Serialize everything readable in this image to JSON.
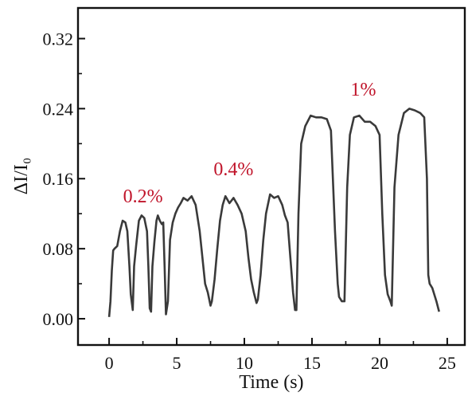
{
  "colors": {
    "line": "#3a3a3a",
    "annotation": "#c0142a",
    "axis": "#111111"
  },
  "chart_data": {
    "type": "line",
    "title": "",
    "xlabel": "Time (s)",
    "ylabel": "ΔI/I₀",
    "xlim": [
      -2.3,
      26.3
    ],
    "ylim": [
      -0.03,
      0.355
    ],
    "x_ticks": [
      0,
      5,
      10,
      15,
      20,
      25
    ],
    "y_ticks": [
      0.0,
      0.08,
      0.16,
      0.24,
      0.32
    ],
    "x_tick_labels": [
      "0",
      "5",
      "10",
      "15",
      "20",
      "25"
    ],
    "y_tick_labels": [
      "0.00",
      "0.08",
      "0.16",
      "0.24",
      "0.32"
    ],
    "grid": false,
    "annotations": [
      {
        "text": "0.2%",
        "x": 2.5,
        "y": 0.133
      },
      {
        "text": "0.4%",
        "x": 9.2,
        "y": 0.164
      },
      {
        "text": "1%",
        "x": 18.8,
        "y": 0.255
      }
    ],
    "series": [
      {
        "x": [
          0.0,
          0.1,
          0.2,
          0.3,
          0.4,
          0.6,
          0.8,
          1.0,
          1.2,
          1.35,
          1.5,
          1.6,
          1.75,
          1.85,
          2.0,
          2.2,
          2.4,
          2.6,
          2.8,
          2.9,
          3.0,
          3.1,
          3.2,
          3.35,
          3.5,
          3.6,
          3.75,
          3.9,
          4.0,
          4.1,
          4.2,
          4.35,
          4.5,
          4.7,
          4.9,
          5.1,
          5.3,
          5.5,
          5.8,
          6.1,
          6.4,
          6.7,
          6.9,
          7.1,
          7.3,
          7.5,
          7.6,
          7.8,
          8.0,
          8.2,
          8.4,
          8.6,
          8.9,
          9.2,
          9.5,
          9.8,
          10.1,
          10.3,
          10.5,
          10.7,
          10.9,
          11.0,
          11.2,
          11.4,
          11.6,
          11.9,
          12.2,
          12.5,
          12.8,
          13.0,
          13.2,
          13.4,
          13.6,
          13.75,
          13.85,
          14.0,
          14.2,
          14.5,
          14.9,
          15.3,
          15.7,
          16.1,
          16.4,
          16.7,
          16.9,
          17.0,
          17.2,
          17.4,
          17.6,
          17.8,
          18.1,
          18.5,
          18.9,
          19.3,
          19.7,
          20.0,
          20.2,
          20.4,
          20.6,
          20.8,
          20.9,
          21.1,
          21.4,
          21.8,
          22.2,
          22.6,
          23.0,
          23.3,
          23.5,
          23.6,
          23.7,
          23.9,
          24.2,
          24.4
        ],
        "y": [
          0.002,
          0.02,
          0.055,
          0.078,
          0.08,
          0.083,
          0.1,
          0.112,
          0.11,
          0.1,
          0.06,
          0.028,
          0.01,
          0.06,
          0.084,
          0.112,
          0.118,
          0.115,
          0.1,
          0.06,
          0.012,
          0.008,
          0.06,
          0.088,
          0.112,
          0.118,
          0.112,
          0.108,
          0.11,
          0.06,
          0.005,
          0.02,
          0.09,
          0.11,
          0.12,
          0.127,
          0.132,
          0.138,
          0.135,
          0.14,
          0.13,
          0.1,
          0.07,
          0.04,
          0.03,
          0.015,
          0.02,
          0.045,
          0.08,
          0.112,
          0.13,
          0.14,
          0.132,
          0.138,
          0.13,
          0.12,
          0.1,
          0.07,
          0.045,
          0.03,
          0.018,
          0.022,
          0.05,
          0.09,
          0.12,
          0.142,
          0.138,
          0.14,
          0.13,
          0.118,
          0.11,
          0.07,
          0.03,
          0.01,
          0.01,
          0.12,
          0.2,
          0.22,
          0.232,
          0.23,
          0.23,
          0.228,
          0.215,
          0.1,
          0.04,
          0.025,
          0.02,
          0.02,
          0.15,
          0.21,
          0.23,
          0.232,
          0.225,
          0.225,
          0.22,
          0.21,
          0.12,
          0.05,
          0.028,
          0.02,
          0.015,
          0.15,
          0.21,
          0.235,
          0.24,
          0.238,
          0.235,
          0.23,
          0.16,
          0.05,
          0.04,
          0.035,
          0.02,
          0.008
        ]
      }
    ]
  }
}
